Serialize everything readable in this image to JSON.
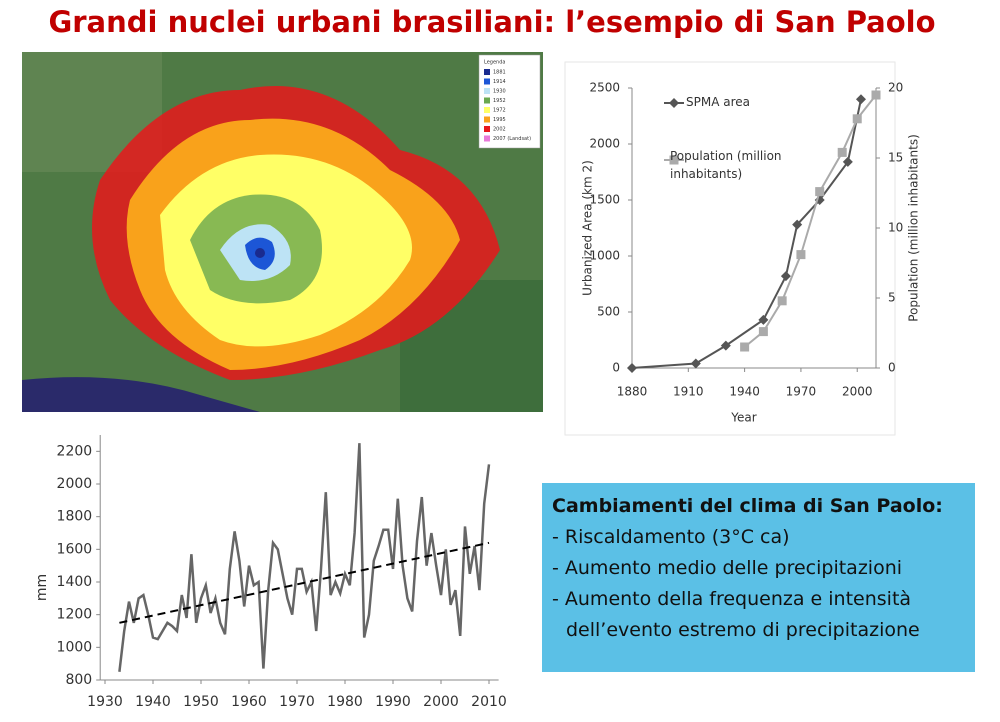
{
  "title": "Grandi nuclei urbani brasiliani: l’esempio di San Paolo",
  "map": {
    "legend_title": "Legenda",
    "legend": [
      {
        "label": "1881",
        "color": "#1a2b8f"
      },
      {
        "label": "1914",
        "color": "#1c56d6"
      },
      {
        "label": "1930",
        "color": "#bde3f5"
      },
      {
        "label": "1952",
        "color": "#6aa84f"
      },
      {
        "label": "1972",
        "color": "#ffff66"
      },
      {
        "label": "1995",
        "color": "#f9a21b"
      },
      {
        "label": "2002",
        "color": "#e8171b"
      },
      {
        "label": "2007 (Landsat)",
        "color": "#e87ad8"
      }
    ]
  },
  "chart_data": [
    {
      "type": "line",
      "xlabel": "Year",
      "ylabel": "Urbanized Area (km 2)",
      "y2label": "Population (million inhabitants)",
      "xlim": [
        1880,
        2010
      ],
      "xticks": [
        1880,
        1910,
        1940,
        1970,
        2000
      ],
      "ylim": [
        0,
        2500
      ],
      "yticks": [
        0,
        500,
        1000,
        1500,
        2000,
        2500
      ],
      "y2lim": [
        0,
        20
      ],
      "y2ticks": [
        0,
        5,
        10,
        15,
        20
      ],
      "series": [
        {
          "name": "SPMA area",
          "color": "#555555",
          "marker": "diamond",
          "x": [
            1880,
            1914,
            1930,
            1950,
            1962,
            1968,
            1980,
            1995,
            2002
          ],
          "values": [
            0,
            40,
            200,
            430,
            820,
            1280,
            1500,
            1840,
            2400
          ]
        },
        {
          "name": "Population (million inhabitants)",
          "color": "#aaaaaa",
          "marker": "square",
          "axis": "y2",
          "x": [
            1940,
            1950,
            1960,
            1970,
            1980,
            1992,
            2000,
            2010
          ],
          "values": [
            1.5,
            2.6,
            4.8,
            8.1,
            12.6,
            15.4,
            17.8,
            19.5
          ]
        }
      ]
    },
    {
      "type": "line",
      "ylabel": "mm",
      "xlim": [
        1929,
        2012
      ],
      "xticks": [
        1930,
        1940,
        1950,
        1960,
        1970,
        1980,
        1990,
        2000,
        2010
      ],
      "ylim": [
        800,
        2300
      ],
      "yticks": [
        800,
        1000,
        1200,
        1400,
        1600,
        1800,
        2000,
        2200
      ],
      "series": [
        {
          "color": "#666666",
          "x": [
            1933,
            1934,
            1935,
            1936,
            1937,
            1938,
            1939,
            1940,
            1941,
            1942,
            1943,
            1944,
            1945,
            1946,
            1947,
            1948,
            1949,
            1950,
            1951,
            1952,
            1953,
            1954,
            1955,
            1956,
            1957,
            1958,
            1959,
            1960,
            1961,
            1962,
            1963,
            1964,
            1965,
            1966,
            1967,
            1968,
            1969,
            1970,
            1971,
            1972,
            1973,
            1974,
            1975,
            1976,
            1977,
            1978,
            1979,
            1980,
            1981,
            1982,
            1983,
            1984,
            1985,
            1986,
            1987,
            1988,
            1989,
            1990,
            1991,
            1992,
            1993,
            1994,
            1995,
            1996,
            1997,
            1998,
            1999,
            2000,
            2001,
            2002,
            2003,
            2004,
            2005,
            2006,
            2007,
            2008,
            2009,
            2010
          ],
          "values": [
            850,
            1100,
            1280,
            1150,
            1300,
            1320,
            1200,
            1060,
            1050,
            1100,
            1150,
            1130,
            1100,
            1320,
            1180,
            1570,
            1150,
            1300,
            1380,
            1210,
            1300,
            1150,
            1080,
            1480,
            1710,
            1530,
            1250,
            1500,
            1380,
            1400,
            870,
            1350,
            1640,
            1600,
            1450,
            1300,
            1200,
            1480,
            1480,
            1340,
            1400,
            1100,
            1480,
            1950,
            1320,
            1400,
            1330,
            1450,
            1380,
            1700,
            2250,
            1060,
            1200,
            1530,
            1620,
            1720,
            1720,
            1480,
            1910,
            1500,
            1300,
            1220,
            1650,
            1920,
            1500,
            1700,
            1500,
            1320,
            1600,
            1260,
            1350,
            1070,
            1740,
            1450,
            1620,
            1350,
            1880,
            2120
          ]
        }
      ],
      "trend": {
        "color": "#000000",
        "x": [
          1933,
          2010
        ],
        "values": [
          1150,
          1640
        ]
      }
    }
  ],
  "info_box": {
    "title": "Cambiamenti del clima di San Paolo:",
    "lines": [
      "- Riscaldamento (3°C ca)",
      "- Aumento medio delle precipitazioni",
      "- Aumento della frequenza e intensità",
      "dell’evento estremo di precipitazione"
    ]
  }
}
